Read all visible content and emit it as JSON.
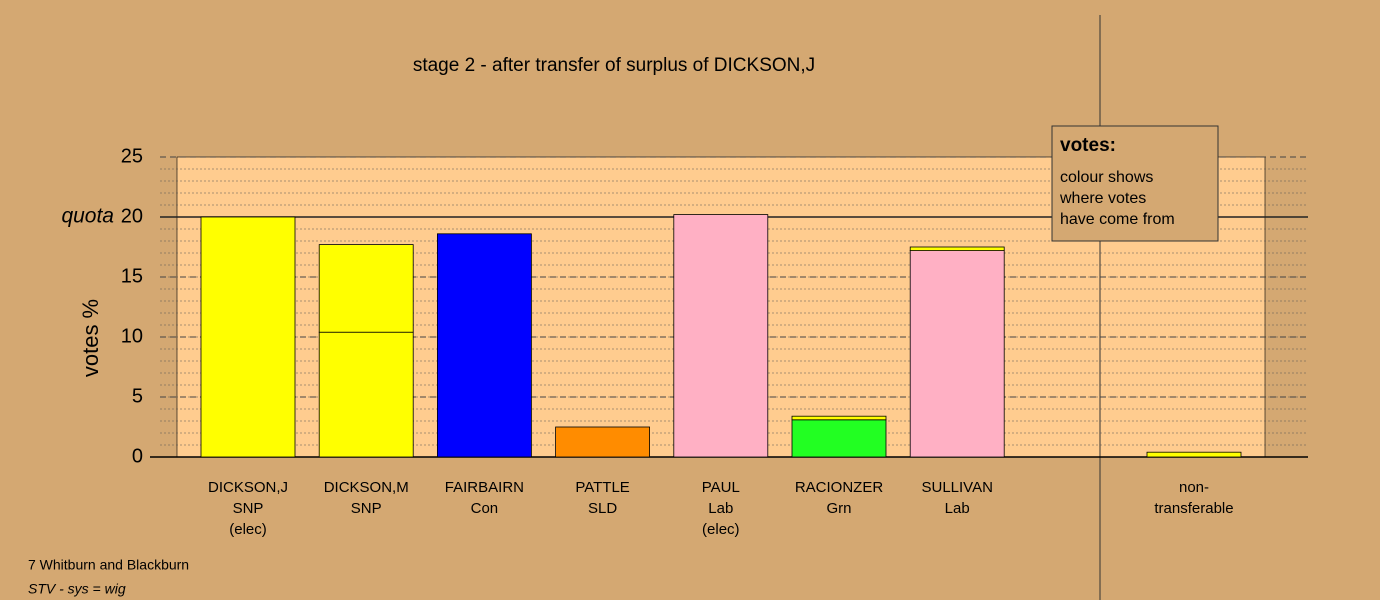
{
  "chart_data": {
    "type": "bar",
    "title": "stage 2 - after transfer of surplus of DICKSON,J",
    "y_label": "votes %",
    "categories": [
      [
        "DICKSON,J",
        "SNP",
        "(elec)"
      ],
      [
        "DICKSON,M",
        "SNP"
      ],
      [
        "FAIRBAIRN",
        "Con"
      ],
      [
        "PATTLE",
        "SLD"
      ],
      [
        "PAUL",
        "Lab",
        "(elec)"
      ],
      [
        "RACIONZER",
        "Grn"
      ],
      [
        "SULLIVAN",
        "Lab"
      ],
      [
        "non-",
        "transferable"
      ]
    ],
    "series": [
      {
        "colors": [
          "#ffff00",
          "#ffff00",
          "#0000ff",
          "#ff8c00",
          "#ffb0c4",
          "#22ff22",
          "#ffb0c4",
          "#ffff00"
        ],
        "values": [
          20,
          10.4,
          18.6,
          2.5,
          20.2,
          3.1,
          17.2,
          null
        ]
      },
      {
        "color": "#ffff00",
        "values": [
          null,
          7.3,
          null,
          null,
          null,
          0.3,
          0.3,
          0.4
        ]
      }
    ],
    "ylim": [
      0,
      25
    ],
    "yticks": [
      0,
      5,
      10,
      15,
      20,
      25
    ],
    "minor_step": 1,
    "quota": {
      "value": 20,
      "label": "quota"
    },
    "legend": {
      "title": "votes:",
      "lines": [
        "colour shows",
        "where votes",
        "have come from"
      ]
    },
    "footnotes": [
      "7 Whitburn and Blackburn",
      "STV - sys = wig"
    ]
  }
}
